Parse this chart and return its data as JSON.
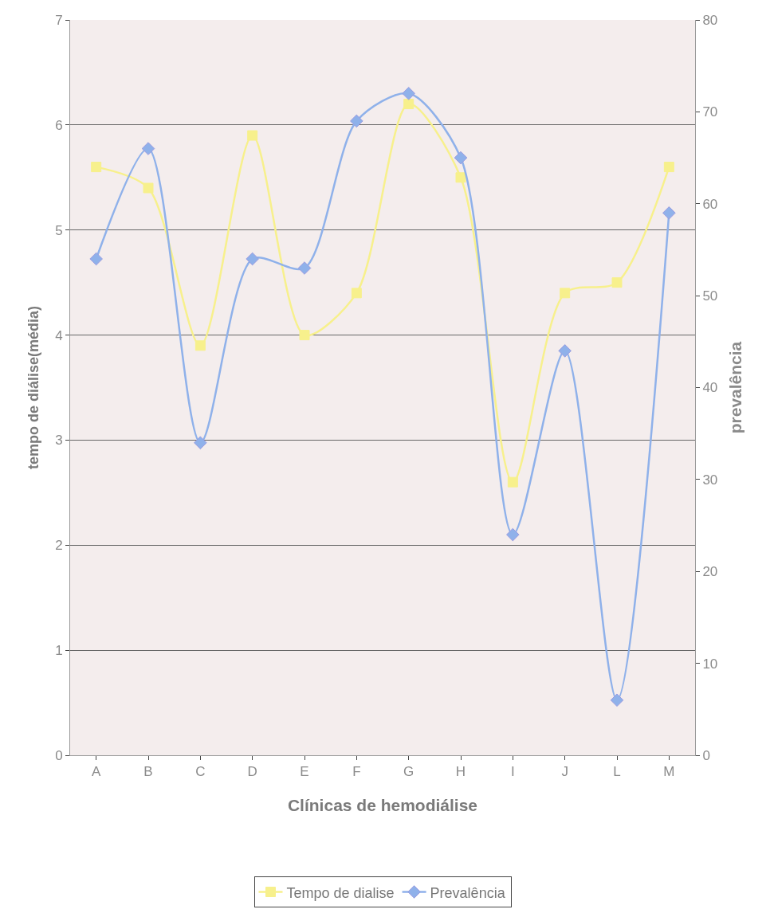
{
  "chart_data": {
    "type": "line",
    "xlabel": "Clínicas de hemodiálise",
    "ylabel": "tempo de diálise(média)",
    "y2label": "prevalência",
    "categories": [
      "A",
      "B",
      "C",
      "D",
      "E",
      "F",
      "G",
      "H",
      "I",
      "J",
      "L",
      "M"
    ],
    "series": [
      {
        "name": "Tempo de dialise",
        "color": "#f7f08c",
        "marker": "square",
        "values": [
          5.6,
          5.4,
          3.9,
          5.9,
          4.0,
          4.4,
          6.2,
          5.5,
          2.6,
          4.4,
          4.5,
          5.6
        ]
      },
      {
        "name": "Prevalência",
        "color": "#8fb1ea",
        "marker": "diamond",
        "axis": "y2",
        "values": [
          54,
          66,
          34,
          54,
          53,
          69,
          72,
          65,
          24,
          44,
          6,
          59
        ]
      }
    ],
    "ylim": [
      0,
      7
    ],
    "yticks": [
      0,
      1,
      2,
      3,
      4,
      5,
      6,
      7
    ],
    "y2lim": [
      0,
      80
    ],
    "y2ticks": [
      0,
      10,
      20,
      30,
      40,
      50,
      60,
      70,
      80
    ],
    "grid": "y",
    "legend": "bottom"
  }
}
